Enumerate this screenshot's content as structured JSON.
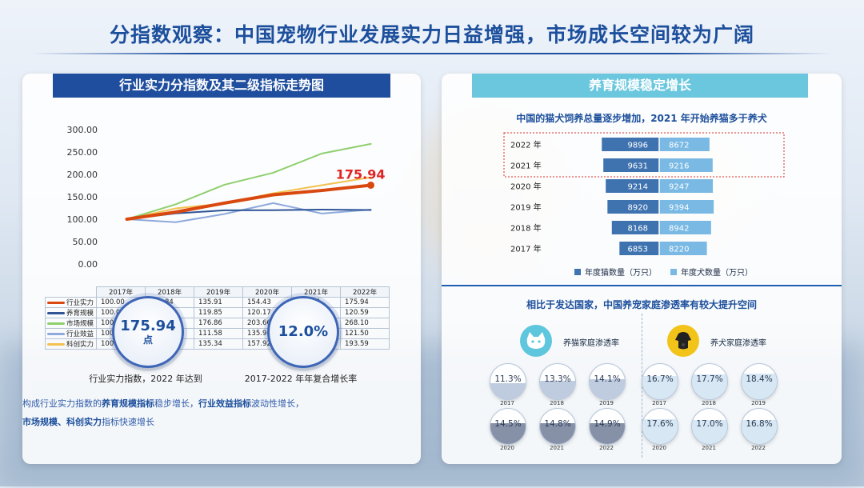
{
  "title": "分指数观察：中国宠物行业发展实力日益增强，市场成长空间较为广阔",
  "left": {
    "header": "行业实力分指数及其二级指标走势图",
    "kpi1": {
      "value": "175.94",
      "unit": "点",
      "caption": "行业实力指数，2022 年达到"
    },
    "kpi2": {
      "value": "12.0%",
      "caption": "2017-2022 年年复合增长率"
    },
    "note": {
      "p1": "构成行业实力指数的",
      "h1": "养育规模指标",
      "p2": "稳步增长，",
      "h2": "行业效益指标",
      "p3": "波动性增长，",
      "h3": "市场规模、科创实力",
      "p4": "指标快速增长"
    }
  },
  "right": {
    "header": "养育规模稳定增长",
    "sub1": "中国的猫犬饲养总量逐步增加，2021 年开始养猫多于养犬",
    "sub2": "相比于发达国家，中国养宠家庭渗透率有较大提升空间",
    "cat_label": "养猫家庭渗透率",
    "dog_label": "养犬家庭渗透率"
  },
  "chart_data": [
    {
      "type": "line",
      "x": [
        "2017年",
        "2018年",
        "2019年",
        "2020年",
        "2021年",
        "2022年"
      ],
      "yticks": [
        "0.00",
        "50.00",
        "100.00",
        "150.00",
        "200.00",
        "250.00",
        "300.00"
      ],
      "ylim": [
        0,
        300
      ],
      "highlight": {
        "series": "行业实力",
        "label": "175.94"
      },
      "series": [
        {
          "name": "行业实力",
          "color": "#d9480f",
          "values": [
            100.0,
            115.84,
            135.91,
            154.43,
            164.17,
            175.94
          ],
          "labels": [
            "100.00",
            "115.84",
            "135.91",
            "154.43",
            "164.17",
            "175.94"
          ]
        },
        {
          "name": "养育规模",
          "color": "#2f5597",
          "values": [
            100.0,
            112.92,
            119.85,
            120.17,
            121.36,
            120.59
          ],
          "labels": [
            "100.00",
            "112.92",
            "119.85",
            "120.17",
            "121.36",
            "120.59"
          ]
        },
        {
          "name": "市场规模",
          "color": "#8fcf6e",
          "values": [
            100.0,
            133.17,
            176.86,
            203.66,
            246.7,
            268.1
          ],
          "labels": [
            "100.00",
            "133.17",
            "176.86",
            "203.66",
            "246.70",
            "268.10"
          ]
        },
        {
          "name": "行业效益",
          "color": "#8ea9db",
          "values": [
            100.0,
            93.24,
            111.58,
            135.98,
            112.65,
            121.5
          ],
          "labels": [
            "100.00",
            "93.24",
            "111.58",
            "135.98",
            "112.65",
            "121.50"
          ]
        },
        {
          "name": "科创实力",
          "color": "#f2c14e",
          "values": [
            100.0,
            124.03,
            135.34,
            157.92,
            175.97,
            193.59
          ],
          "labels": [
            "100.00",
            "124.03",
            "135.34",
            "157.92",
            "175.97",
            "193.59"
          ]
        }
      ]
    },
    {
      "type": "bar",
      "orientation": "horizontal-stacked",
      "categories": [
        "2022 年",
        "2021 年",
        "2020 年",
        "2019 年",
        "2018 年",
        "2017 年"
      ],
      "series": [
        {
          "name": "年度猫数量（万只）",
          "color": "#3f73b0",
          "values": [
            9896,
            9631,
            9214,
            8920,
            8168,
            6853
          ]
        },
        {
          "name": "年度犬数量（万只）",
          "color": "#79b9e4",
          "values": [
            8672,
            9216,
            9247,
            9394,
            8942,
            8220
          ]
        }
      ],
      "highlight_categories": [
        "2022 年",
        "2021 年"
      ]
    },
    {
      "type": "table",
      "name": "养猫家庭渗透率",
      "years": [
        "2017",
        "2018",
        "2019",
        "2020",
        "2021",
        "2022"
      ],
      "values": [
        11.3,
        13.3,
        14.1,
        14.5,
        14.8,
        14.9
      ],
      "labels": [
        "11.3%",
        "13.3%",
        "14.1%",
        "14.5%",
        "14.8%",
        "14.9%"
      ]
    },
    {
      "type": "table",
      "name": "养犬家庭渗透率",
      "years": [
        "2017",
        "2018",
        "2019",
        "2020",
        "2021",
        "2022"
      ],
      "values": [
        16.7,
        17.7,
        18.4,
        17.6,
        17.0,
        16.8
      ],
      "labels": [
        "16.7%",
        "17.7%",
        "18.4%",
        "17.6%",
        "17.0%",
        "16.8%"
      ]
    }
  ],
  "colors": {
    "primary": "#1c4f9c",
    "accent": "#d9480f",
    "teal": "#6bc7de"
  }
}
